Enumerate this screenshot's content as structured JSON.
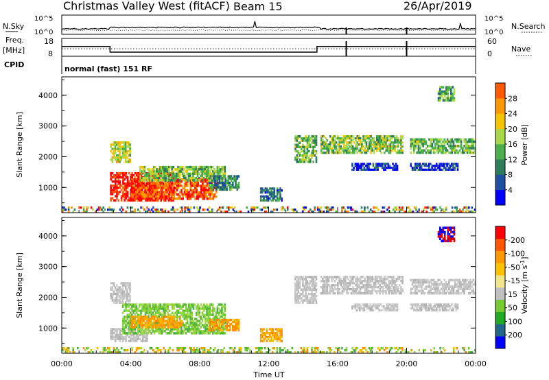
{
  "header": {
    "site": "Christmas Valley West (fitACF)",
    "beam": "Beam 15",
    "date": "26/Apr/2019"
  },
  "left_labels": {
    "nsky": "N.Sky",
    "freq_line1": "Freq.",
    "freq_line2": "[MHz]",
    "cpid": "CPID"
  },
  "right_labels": {
    "nsearch": "N.Search",
    "nave": "Nave"
  },
  "cpid_text": "normal (fast) 151 RF",
  "colors": {
    "scale": [
      "#0000ff",
      "#1e4fa0",
      "#2e7d5a",
      "#4bb04b",
      "#a8d84a",
      "#f5c400",
      "#ff9900",
      "#ff5a00",
      "#ff0000"
    ],
    "velocity_scale": [
      "#ff0000",
      "#ff5500",
      "#ff9900",
      "#ffc000",
      "#f0e68c",
      "#c0c0c0",
      "#77cc33",
      "#22aa22",
      "#226688",
      "#0000ff"
    ],
    "noise_green": "#4bb04b",
    "gray": "#bfbfbf"
  },
  "chart_data": [
    {
      "type": "line",
      "name": "noise",
      "left_axis": {
        "label": "N.Sky",
        "tick_labels": [
          "10^5",
          "10^0"
        ]
      },
      "right_axis": {
        "label": "N.Search",
        "tick_labels": [
          "10^5",
          "10^0"
        ]
      },
      "x_range_hours": [
        0,
        24
      ]
    },
    {
      "type": "line",
      "name": "frequency",
      "left_axis": {
        "label": "Freq. [MHz]",
        "tick_labels": [
          "18",
          "8"
        ],
        "ylim": [
          8,
          18
        ]
      },
      "right_axis": {
        "label": "Nave",
        "tick_labels": [
          "60",
          "0"
        ],
        "ylim": [
          0,
          60
        ]
      },
      "freq_segments": [
        {
          "x0": 0.0,
          "x1": 2.8,
          "y": 13.5
        },
        {
          "x0": 2.8,
          "x1": 14.8,
          "y": 10.3
        },
        {
          "x0": 14.8,
          "x1": 24.0,
          "y": 13.5
        }
      ],
      "nave_segments": [
        {
          "x0": 0.0,
          "x1": 24.0,
          "y": 25
        }
      ],
      "gaps": [
        16.5,
        20.0
      ]
    },
    {
      "type": "heatmap",
      "name": "power",
      "ylabel": "Slant Range [km]",
      "yticks": [
        1000,
        2000,
        3000,
        4000
      ],
      "ylim": [
        180,
        4600
      ],
      "xlim": [
        0,
        24
      ],
      "colorbar": {
        "label": "Power [dB]",
        "ticks": [
          "4",
          "8",
          "12",
          "16",
          "20",
          "24",
          "28"
        ],
        "range": [
          0,
          32
        ]
      },
      "regions": [
        {
          "x0": 2.8,
          "x1": 4.0,
          "r0": 1800,
          "r1": 2500,
          "level": 0.5
        },
        {
          "x0": 2.8,
          "x1": 6.5,
          "r0": 550,
          "r1": 1500,
          "level": 0.95
        },
        {
          "x0": 4.0,
          "x1": 9.0,
          "r0": 600,
          "r1": 1300,
          "level": 0.85
        },
        {
          "x0": 4.5,
          "x1": 9.5,
          "r0": 1200,
          "r1": 1700,
          "level": 0.45
        },
        {
          "x0": 8.5,
          "x1": 10.3,
          "r0": 900,
          "r1": 1400,
          "level": 0.3
        },
        {
          "x0": 11.5,
          "x1": 12.8,
          "r0": 550,
          "r1": 1000,
          "level": 0.25
        },
        {
          "x0": 13.5,
          "x1": 14.8,
          "r0": 1800,
          "r1": 2700,
          "level": 0.4
        },
        {
          "x0": 15.0,
          "x1": 19.8,
          "r0": 2100,
          "r1": 2700,
          "level": 0.45
        },
        {
          "x0": 16.8,
          "x1": 19.5,
          "r0": 1550,
          "r1": 1800,
          "level": 0.1
        },
        {
          "x0": 20.2,
          "x1": 23.0,
          "r0": 1550,
          "r1": 1800,
          "level": 0.1
        },
        {
          "x0": 20.2,
          "x1": 24.0,
          "r0": 2100,
          "r1": 2600,
          "level": 0.4
        },
        {
          "x0": 21.8,
          "x1": 22.8,
          "r0": 3800,
          "r1": 4300,
          "level": 0.35
        },
        {
          "x0": 0.0,
          "x1": 24.0,
          "r0": 180,
          "r1": 380,
          "level": 0.2
        }
      ]
    },
    {
      "type": "heatmap",
      "name": "velocity",
      "ylabel": "Slant Range [km]",
      "xlabel": "Time UT",
      "yticks": [
        1000,
        2000,
        3000,
        4000
      ],
      "ylim": [
        180,
        4600
      ],
      "xlim": [
        0,
        24
      ],
      "xtick_labels": [
        "00:00",
        "04:00",
        "08:00",
        "12:00",
        "16:00",
        "20:00",
        "00:00"
      ],
      "colorbar": {
        "label": "Velocity [m s^-1]",
        "ticks": [
          "-200",
          "-100",
          "-50",
          "-15",
          "15",
          "50",
          "100",
          "200"
        ]
      },
      "regions": [
        {
          "x0": 2.8,
          "x1": 4.0,
          "r0": 1800,
          "r1": 2500,
          "cls": "gray"
        },
        {
          "x0": 2.8,
          "x1": 5.0,
          "r0": 550,
          "r1": 1000,
          "cls": "gray"
        },
        {
          "x0": 3.5,
          "x1": 9.5,
          "r0": 800,
          "r1": 1800,
          "cls": "green"
        },
        {
          "x0": 4.0,
          "x1": 7.0,
          "r0": 1000,
          "r1": 1400,
          "cls": "orange"
        },
        {
          "x0": 8.5,
          "x1": 10.3,
          "r0": 900,
          "r1": 1300,
          "cls": "orange"
        },
        {
          "x0": 11.5,
          "x1": 12.8,
          "r0": 550,
          "r1": 1000,
          "cls": "orange"
        },
        {
          "x0": 13.5,
          "x1": 14.8,
          "r0": 1800,
          "r1": 2700,
          "cls": "gray"
        },
        {
          "x0": 15.0,
          "x1": 19.8,
          "r0": 2100,
          "r1": 2700,
          "cls": "gray"
        },
        {
          "x0": 16.8,
          "x1": 19.5,
          "r0": 1550,
          "r1": 1800,
          "cls": "gray"
        },
        {
          "x0": 20.2,
          "x1": 23.0,
          "r0": 1550,
          "r1": 1800,
          "cls": "gray"
        },
        {
          "x0": 20.2,
          "x1": 24.0,
          "r0": 2100,
          "r1": 2600,
          "cls": "gray"
        },
        {
          "x0": 21.8,
          "x1": 22.8,
          "r0": 3800,
          "r1": 4300,
          "cls": "blue"
        },
        {
          "x0": 0.0,
          "x1": 24.0,
          "r0": 180,
          "r1": 380,
          "cls": "green"
        }
      ]
    }
  ]
}
